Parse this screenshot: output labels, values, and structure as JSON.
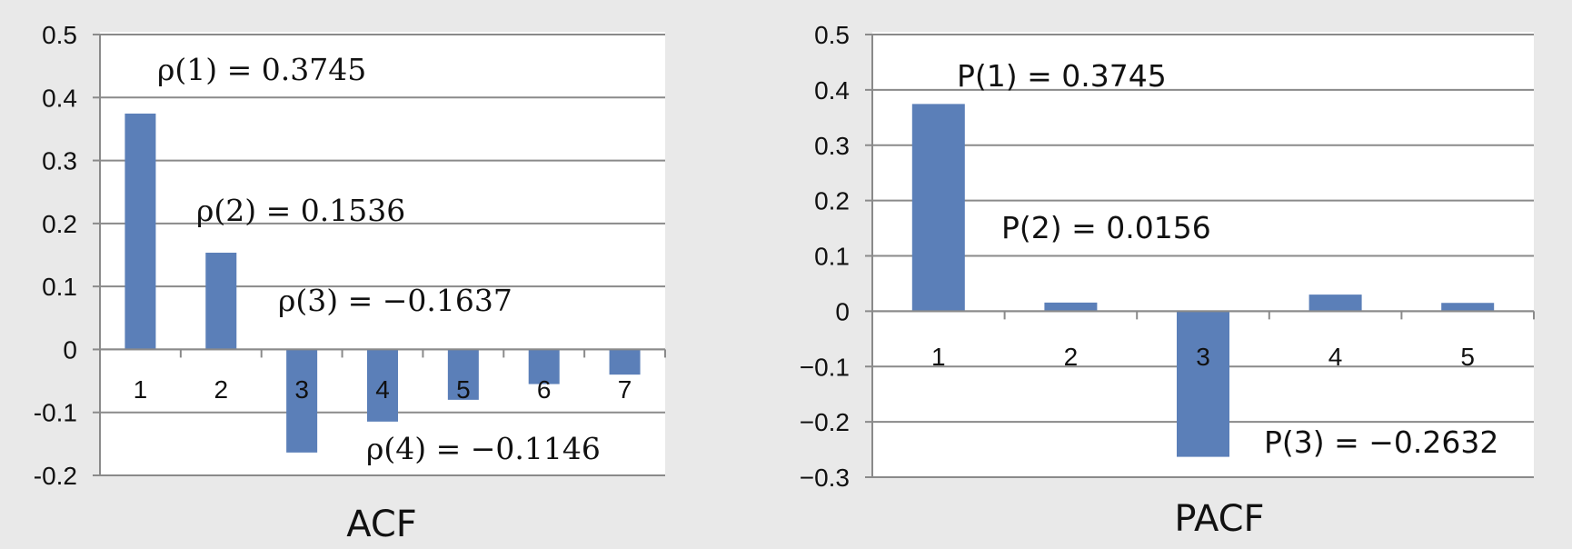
{
  "chart_data": [
    {
      "type": "bar",
      "title": "ACF",
      "categories": [
        "1",
        "2",
        "3",
        "4",
        "5",
        "6",
        "7"
      ],
      "values": [
        0.3745,
        0.1536,
        -0.1637,
        -0.1146,
        -0.08,
        -0.055,
        -0.04
      ],
      "ylim": [
        -0.2,
        0.5
      ],
      "yticks": [
        "0.5",
        "0.4",
        "0.3",
        "0.2",
        "0.1",
        "0",
        "-0.1",
        "-0.2"
      ],
      "ytick_values": [
        0.5,
        0.4,
        0.3,
        0.2,
        0.1,
        0,
        -0.1,
        -0.2
      ],
      "grid": true,
      "bar_color": "#5b7fb8",
      "annotations": [
        {
          "text": "ρ(1) = 0.3745"
        },
        {
          "text": "ρ(2) = 0.1536"
        },
        {
          "text": "ρ(3) = −0.1637"
        },
        {
          "text": "ρ(4) = −0.1146"
        }
      ]
    },
    {
      "type": "bar",
      "title": "PACF",
      "categories": [
        "1",
        "2",
        "3",
        "4",
        "5"
      ],
      "values": [
        0.3745,
        0.0156,
        -0.2632,
        0.03,
        0.015
      ],
      "ylim": [
        -0.3,
        0.5
      ],
      "yticks": [
        "0.5",
        "0.4",
        "0.3",
        "0.2",
        "0.1",
        "0",
        "−0.1",
        "−0.2",
        "−0.3"
      ],
      "ytick_values": [
        0.5,
        0.4,
        0.3,
        0.2,
        0.1,
        0,
        -0.1,
        -0.2,
        -0.3
      ],
      "grid": true,
      "bar_color": "#5b7fb8",
      "annotations": [
        {
          "text": "P(1) = 0.3745"
        },
        {
          "text": "P(2) = 0.0156"
        },
        {
          "text": "P(3) = −0.2632"
        }
      ]
    }
  ]
}
